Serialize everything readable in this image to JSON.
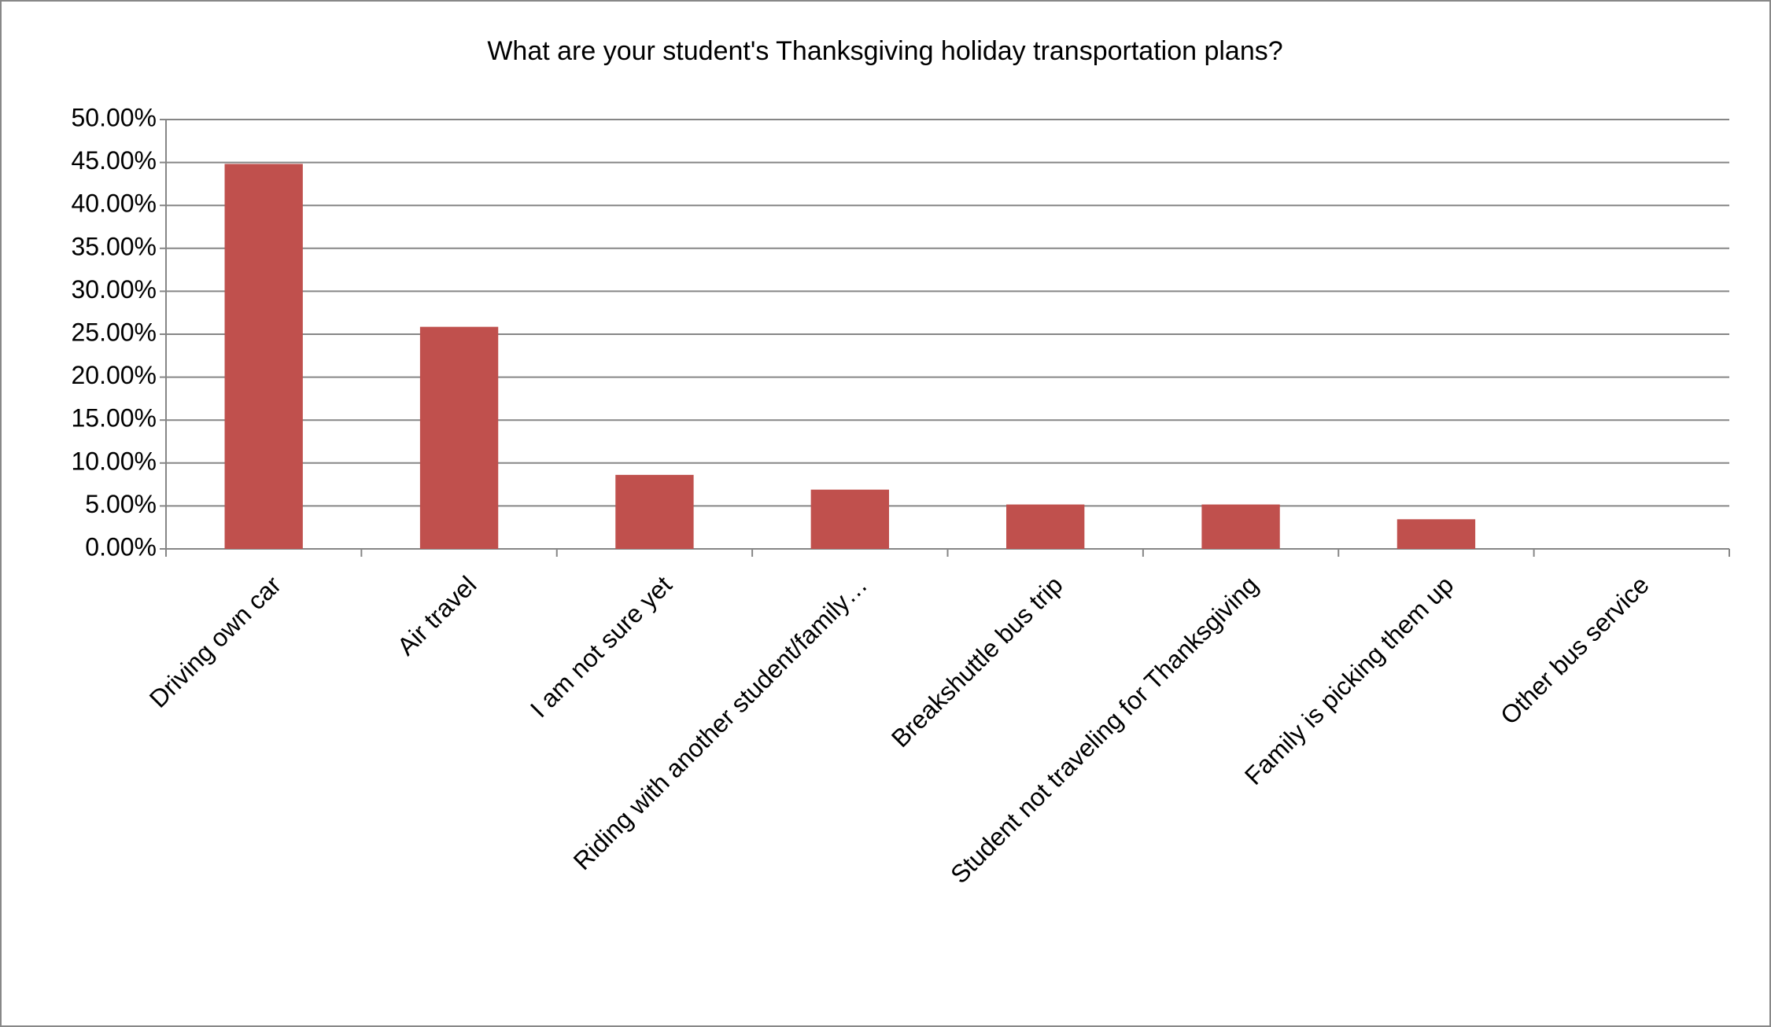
{
  "chart_data": {
    "type": "bar",
    "title": "What are your student's Thanksgiving holiday transportation plans?",
    "categories": [
      "Driving own car",
      "Air travel",
      "I am not sure yet",
      "Riding with another student/family…",
      "Breakshuttle bus trip",
      "Student not traveling for Thanksgiving",
      "Family is picking them up",
      "Other bus service"
    ],
    "values": [
      44.83,
      25.86,
      8.62,
      6.9,
      5.17,
      5.17,
      3.45,
      0
    ],
    "color": "#c0504d",
    "ylim": [
      0,
      50
    ],
    "yticks": [
      {
        "value": 0,
        "label": "0.00%"
      },
      {
        "value": 5,
        "label": "5.00%"
      },
      {
        "value": 10,
        "label": "10.00%"
      },
      {
        "value": 15,
        "label": "15.00%"
      },
      {
        "value": 20,
        "label": "20.00%"
      },
      {
        "value": 25,
        "label": "25.00%"
      },
      {
        "value": 30,
        "label": "30.00%"
      },
      {
        "value": 35,
        "label": "35.00%"
      },
      {
        "value": 40,
        "label": "40.00%"
      },
      {
        "value": 45,
        "label": "45.00%"
      },
      {
        "value": 50,
        "label": "50.00%"
      }
    ],
    "grid": true
  }
}
